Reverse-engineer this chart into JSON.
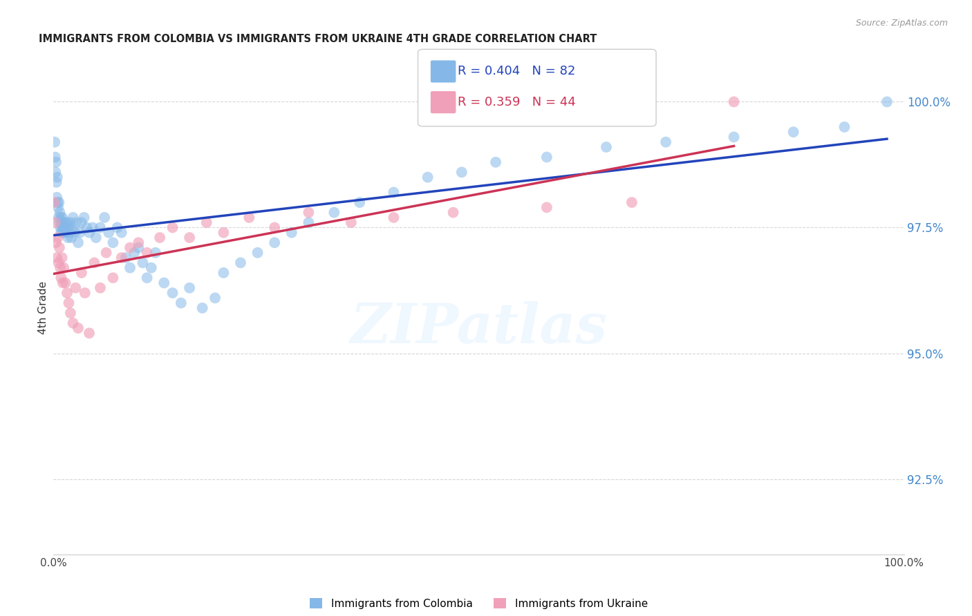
{
  "title": "IMMIGRANTS FROM COLOMBIA VS IMMIGRANTS FROM UKRAINE 4TH GRADE CORRELATION CHART",
  "source": "Source: ZipAtlas.com",
  "ylabel": "4th Grade",
  "ylabel_right_ticks": [
    92.5,
    95.0,
    97.5,
    100.0
  ],
  "ylabel_right_labels": [
    "92.5%",
    "95.0%",
    "97.5%",
    "100.0%"
  ],
  "xmin": 0.0,
  "xmax": 100.0,
  "ymin": 91.0,
  "ymax": 100.8,
  "colombia_color": "#85b8e8",
  "ukraine_color": "#f0a0b8",
  "trend_colombia_color": "#2244bb",
  "trend_ukraine_color": "#cc3355",
  "r_colombia": 0.404,
  "n_colombia": 82,
  "r_ukraine": 0.359,
  "n_ukraine": 44,
  "colombia_label": "Immigrants from Colombia",
  "ukraine_label": "Immigrants from Ukraine",
  "watermark_text": "ZIPatlas",
  "colombia_x": [
    0.15,
    0.2,
    0.25,
    0.3,
    0.35,
    0.4,
    0.45,
    0.5,
    0.55,
    0.6,
    0.65,
    0.7,
    0.75,
    0.8,
    0.85,
    0.9,
    0.95,
    1.0,
    1.05,
    1.1,
    1.15,
    1.2,
    1.3,
    1.4,
    1.5,
    1.6,
    1.7,
    1.8,
    1.9,
    2.0,
    2.1,
    2.2,
    2.3,
    2.5,
    2.7,
    2.9,
    3.1,
    3.3,
    3.6,
    3.9,
    4.2,
    4.6,
    5.0,
    5.5,
    6.0,
    6.5,
    7.0,
    7.5,
    8.0,
    8.5,
    9.0,
    9.5,
    10.0,
    10.5,
    11.0,
    11.5,
    12.0,
    13.0,
    14.0,
    15.0,
    16.0,
    17.5,
    19.0,
    20.0,
    22.0,
    24.0,
    26.0,
    28.0,
    30.0,
    33.0,
    36.0,
    40.0,
    44.0,
    48.0,
    52.0,
    58.0,
    65.0,
    72.0,
    80.0,
    87.0,
    93.0,
    98.0
  ],
  "colombia_y": [
    99.2,
    98.9,
    98.6,
    98.8,
    98.4,
    98.1,
    98.5,
    98.0,
    97.9,
    97.7,
    98.0,
    97.6,
    97.8,
    97.5,
    97.7,
    97.4,
    97.6,
    97.5,
    97.7,
    97.4,
    97.6,
    97.5,
    97.6,
    97.4,
    97.5,
    97.6,
    97.3,
    97.5,
    97.4,
    97.6,
    97.3,
    97.5,
    97.7,
    97.4,
    97.6,
    97.2,
    97.4,
    97.6,
    97.7,
    97.5,
    97.4,
    97.5,
    97.3,
    97.5,
    97.7,
    97.4,
    97.2,
    97.5,
    97.4,
    96.9,
    96.7,
    97.0,
    97.1,
    96.8,
    96.5,
    96.7,
    97.0,
    96.4,
    96.2,
    96.0,
    96.3,
    95.9,
    96.1,
    96.6,
    96.8,
    97.0,
    97.2,
    97.4,
    97.6,
    97.8,
    98.0,
    98.2,
    98.5,
    98.6,
    98.8,
    98.9,
    99.1,
    99.2,
    99.3,
    99.4,
    99.5,
    100.0
  ],
  "ukraine_x": [
    0.1,
    0.2,
    0.3,
    0.4,
    0.5,
    0.6,
    0.7,
    0.8,
    0.9,
    1.0,
    1.1,
    1.2,
    1.4,
    1.6,
    1.8,
    2.0,
    2.3,
    2.6,
    2.9,
    3.3,
    3.7,
    4.2,
    4.8,
    5.5,
    6.2,
    7.0,
    8.0,
    9.0,
    10.0,
    11.0,
    12.5,
    14.0,
    16.0,
    18.0,
    20.0,
    23.0,
    26.0,
    30.0,
    35.0,
    40.0,
    47.0,
    58.0,
    68.0,
    80.0
  ],
  "ukraine_y": [
    98.0,
    97.6,
    97.2,
    96.9,
    97.3,
    96.8,
    97.1,
    96.7,
    96.5,
    96.9,
    96.4,
    96.7,
    96.4,
    96.2,
    96.0,
    95.8,
    95.6,
    96.3,
    95.5,
    96.6,
    96.2,
    95.4,
    96.8,
    96.3,
    97.0,
    96.5,
    96.9,
    97.1,
    97.2,
    97.0,
    97.3,
    97.5,
    97.3,
    97.6,
    97.4,
    97.7,
    97.5,
    97.8,
    97.6,
    97.7,
    97.8,
    97.9,
    98.0,
    100.0
  ],
  "grid_color": "#cccccc",
  "background_color": "#ffffff"
}
